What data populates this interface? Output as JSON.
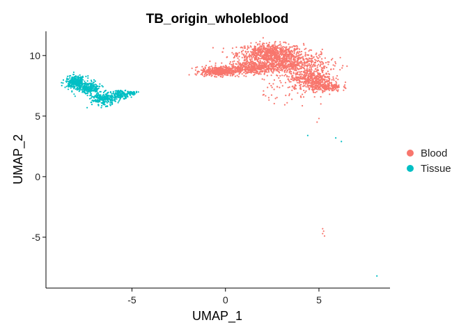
{
  "chart_data": {
    "type": "scatter",
    "title": "TB_origin_wholeblood",
    "xlabel": "UMAP_1",
    "ylabel": "UMAP_2",
    "xlim": [
      -9.6,
      8.8
    ],
    "ylim": [
      -9.2,
      12.0
    ],
    "xticks": [
      -5,
      0,
      5
    ],
    "yticks": [
      -5,
      0,
      5,
      10
    ],
    "grid": false,
    "legend_position": "right",
    "series": [
      {
        "name": "Blood",
        "color": "#F8766D",
        "regions": [
          {
            "center": [
              2.4,
              10.2
            ],
            "spread": [
              1.6,
              0.7
            ],
            "count": 700
          },
          {
            "center": [
              3.4,
              9.3
            ],
            "spread": [
              1.9,
              0.8
            ],
            "count": 650
          },
          {
            "center": [
              -0.3,
              8.7
            ],
            "spread": [
              0.9,
              0.35
            ],
            "count": 450
          },
          {
            "center": [
              1.4,
              9.0
            ],
            "spread": [
              1.2,
              0.45
            ],
            "count": 380
          },
          {
            "center": [
              4.6,
              8.1
            ],
            "spread": [
              1.0,
              0.55
            ],
            "count": 380
          },
          {
            "center": [
              5.3,
              7.4
            ],
            "spread": [
              0.8,
              0.35
            ],
            "count": 220
          },
          {
            "center": [
              3.8,
              7.2
            ],
            "spread": [
              1.6,
              0.9
            ],
            "count": 70
          }
        ],
        "outliers": [
          [
            4.9,
            4.5
          ],
          [
            5.0,
            4.8
          ],
          [
            5.1,
            6.0
          ],
          [
            3.3,
            6.1
          ],
          [
            5.2,
            -4.3
          ],
          [
            5.25,
            -4.5
          ],
          [
            5.2,
            -4.7
          ],
          [
            5.3,
            -4.9
          ]
        ]
      },
      {
        "name": "Tissue",
        "color": "#00BFC4",
        "regions": [
          {
            "center": [
              -8.0,
              7.8
            ],
            "spread": [
              0.5,
              0.45
            ],
            "count": 300
          },
          {
            "center": [
              -7.3,
              7.3
            ],
            "spread": [
              0.6,
              0.45
            ],
            "count": 220
          },
          {
            "center": [
              -6.5,
              6.4
            ],
            "spread": [
              0.6,
              0.45
            ],
            "count": 250
          },
          {
            "center": [
              -5.6,
              6.8
            ],
            "spread": [
              0.45,
              0.3
            ],
            "count": 130
          },
          {
            "center": [
              -5.0,
              6.9
            ],
            "spread": [
              0.25,
              0.12
            ],
            "count": 35
          }
        ],
        "outliers": [
          [
            4.4,
            3.4
          ],
          [
            5.9,
            3.2
          ],
          [
            6.2,
            2.9
          ],
          [
            8.1,
            -8.2
          ],
          [
            -7.4,
            5.7
          ]
        ]
      }
    ]
  }
}
